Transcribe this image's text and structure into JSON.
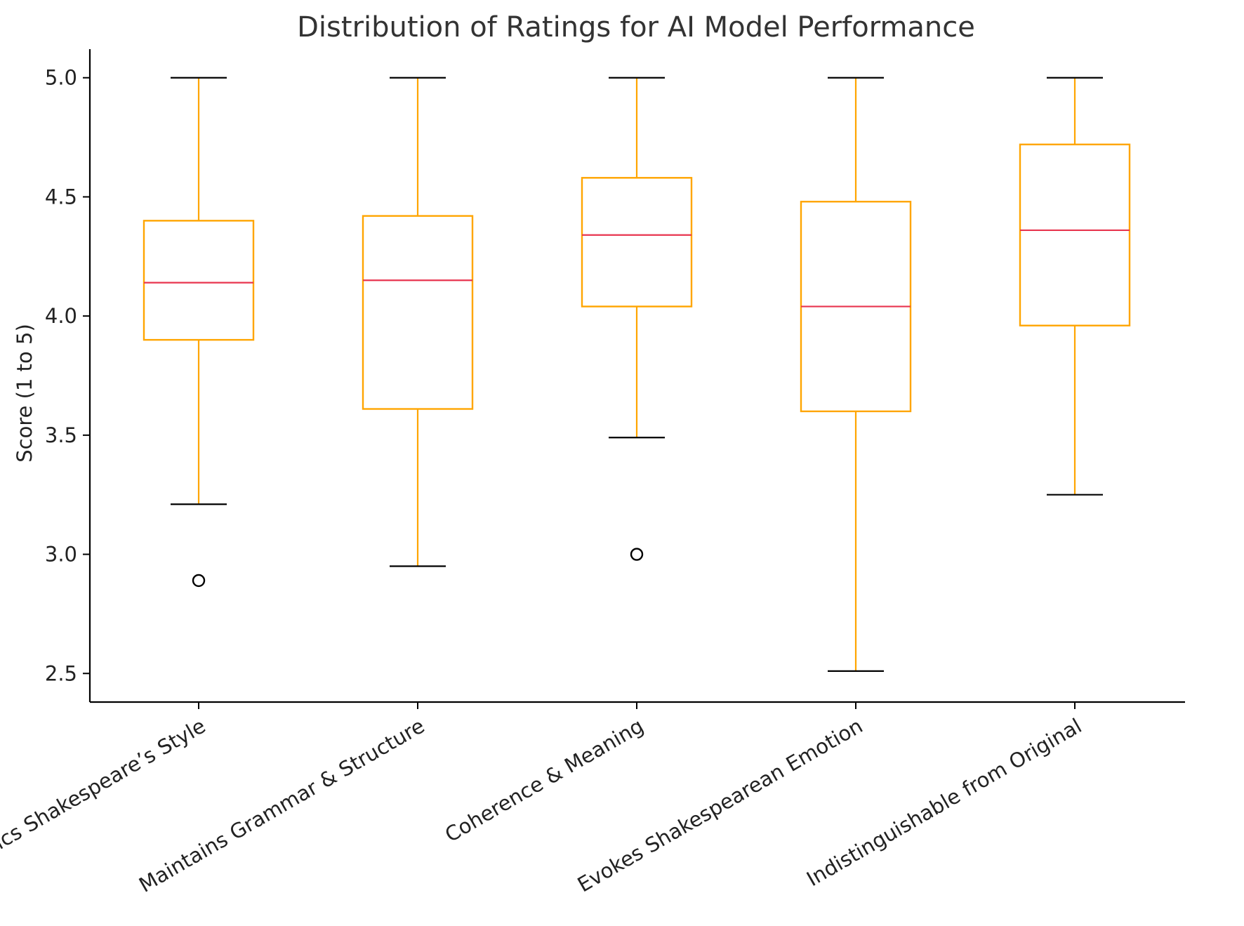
{
  "chart_data": {
    "type": "box",
    "title": "Distribution of Ratings for AI Model Performance",
    "xlabel": "",
    "ylabel": "Score (1 to 5)",
    "ylim": [
      2.38,
      5.12
    ],
    "yticks": [
      "2.5",
      "3.0",
      "3.5",
      "4.0",
      "4.5",
      "5.0"
    ],
    "grid": false,
    "categories": [
      "Mimics Shakespeare’s Style",
      "Maintains Grammar & Structure",
      "Coherence & Meaning",
      "Evokes Shakespearean Emotion",
      "Indistinguishable from Original"
    ],
    "boxes": [
      {
        "whisker_low": 3.21,
        "q1": 3.9,
        "median": 4.14,
        "q3": 4.4,
        "whisker_high": 5.0,
        "outliers": [
          2.89
        ]
      },
      {
        "whisker_low": 2.95,
        "q1": 3.61,
        "median": 4.15,
        "q3": 4.42,
        "whisker_high": 5.0,
        "outliers": []
      },
      {
        "whisker_low": 3.49,
        "q1": 4.04,
        "median": 4.34,
        "q3": 4.58,
        "whisker_high": 5.0,
        "outliers": [
          3.0
        ]
      },
      {
        "whisker_low": 2.51,
        "q1": 3.6,
        "median": 4.04,
        "q3": 4.48,
        "whisker_high": 5.0,
        "outliers": []
      },
      {
        "whisker_low": 3.25,
        "q1": 3.96,
        "median": 4.36,
        "q3": 4.72,
        "whisker_high": 5.0,
        "outliers": []
      }
    ],
    "colors": {
      "box": "#FFA500",
      "median": "#E8354F",
      "whisker_cap": "#000000",
      "outlier": "#000000",
      "axis": "#000000"
    }
  }
}
